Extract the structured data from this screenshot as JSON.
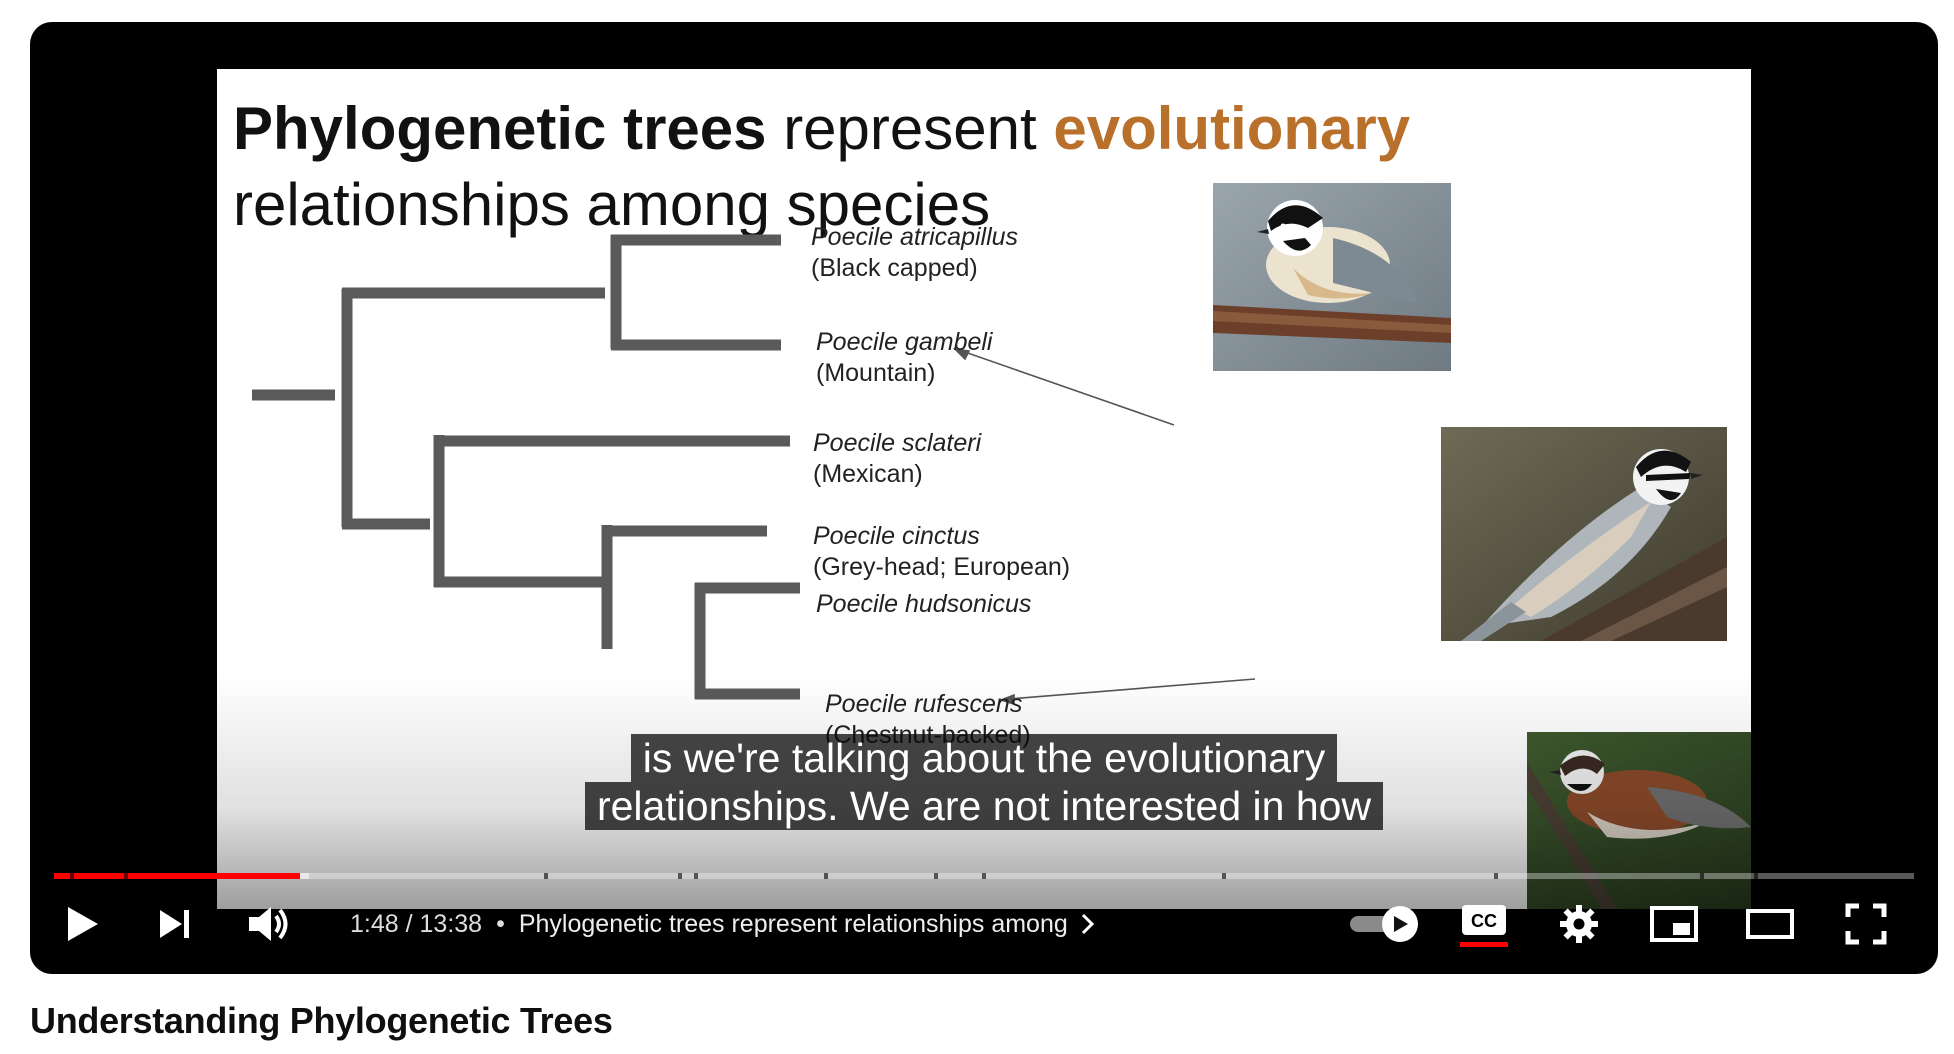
{
  "slide": {
    "title_bold": "Phylogenetic trees",
    "title_mid": " represent ",
    "title_accent": "evolutionary",
    "title_line2": "relationships among species",
    "accent_color": "#b8702a",
    "species": [
      {
        "latin": "Poecile atricapillus",
        "common": "(Black capped)"
      },
      {
        "latin": "Poecile gambeli",
        "common": "(Mountain)"
      },
      {
        "latin": "Poecile sclateri",
        "common": "(Mexican)"
      },
      {
        "latin": "Poecile cinctus",
        "common": "(Grey-head; European)"
      },
      {
        "latin": "Poecile hudsonicus",
        "common": ""
      },
      {
        "latin": "Poecile rufescens",
        "common": "(Chestnut-backed)"
      }
    ]
  },
  "captions": {
    "line1": "is we're talking about the evolutionary",
    "line2": "relationships. We are not interested in how"
  },
  "player": {
    "current_time": "1:48",
    "separator": " / ",
    "duration": "13:38",
    "dot": "•",
    "chapter_title": "Phylogenetic trees represent relationships among",
    "progress_fraction": 0.132,
    "buffered_fraction": 0.137,
    "progress_color": "#ff0000"
  },
  "video": {
    "title": "Understanding Phylogenetic Trees"
  }
}
